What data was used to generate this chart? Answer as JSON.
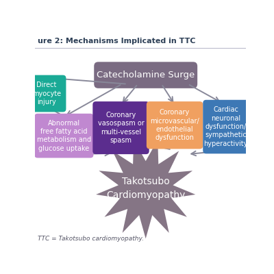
{
  "title": "ure 2: Mechanisms Implicated in TTC",
  "title_color": "#2e4057",
  "background_color": "#ffffff",
  "catecholamine_text": "Catecholamine Surge",
  "catecholamine_color": "#7a6b82",
  "catecholamine_text_color": "#ffffff",
  "takotsubo_text": "Takotsubo\nCardiomyopathy",
  "takotsubo_color": "#857585",
  "takotsubo_text_color": "#ffffff",
  "boxes": [
    {
      "text": "Direct\nmyocyte\ninjury",
      "color": "#1aaa96",
      "text_color": "#ffffff"
    },
    {
      "text": "Abnormal\nfree fatty acid\nmetabolism and\nglucose uptake",
      "color": "#c088d0",
      "text_color": "#ffffff"
    },
    {
      "text": "Coronary\nvasospasm or\nmulti-vessel\nspasm",
      "color": "#5b2d8e",
      "text_color": "#ffffff"
    },
    {
      "text": "Coronary\nmicrovascular/\nendothelial\ndysfunction",
      "color": "#f0a060",
      "text_color": "#ffffff"
    },
    {
      "text": "Cardiac\nneuronal\ndysfunction/\nsympathetic\nhyperactivity",
      "color": "#3d78b5",
      "text_color": "#ffffff"
    }
  ],
  "arrow_color": "#888899",
  "footnote": "= Takotsubo cardiomyopathy."
}
